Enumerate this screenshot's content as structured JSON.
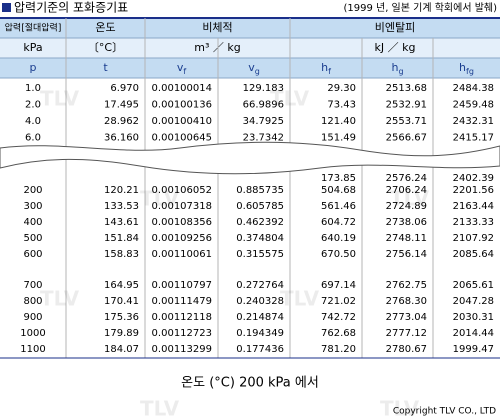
{
  "header": {
    "title": "압력기준의 포화증기표",
    "source": "(1999 년, 일본 기계 학회에서 발췌)"
  },
  "table": {
    "group_header": [
      "압력[절대압력]",
      "온도",
      "비체적",
      "비엔탈피"
    ],
    "unit_header": [
      "kPa",
      "〔°C〕",
      "m³ ／ kg",
      "kJ ／ kg"
    ],
    "symbols": [
      {
        "base": "p"
      },
      {
        "base": "t"
      },
      {
        "base": "v",
        "sub": "f"
      },
      {
        "base": "v",
        "sub": "g"
      },
      {
        "base": "h",
        "sub": "f"
      },
      {
        "base": "h",
        "sub": "g"
      },
      {
        "base": "h",
        "sub": "fg"
      }
    ],
    "rows_top": [
      [
        "1.0",
        "6.970",
        "0.00100014",
        "129.183",
        "29.30",
        "2513.68",
        "2484.38"
      ],
      [
        "2.0",
        "17.495",
        "0.00100136",
        "66.9896",
        "73.43",
        "2532.91",
        "2459.48"
      ],
      [
        "4.0",
        "28.962",
        "0.00100410",
        "34.7925",
        "121.40",
        "2553.71",
        "2432.31"
      ],
      [
        "6.0",
        "36.160",
        "0.00100645",
        "23.7342",
        "151.49",
        "2566.67",
        "2415.17"
      ]
    ],
    "partial_row": [
      "173.85",
      "2576.24",
      "2402.39"
    ],
    "rows_mid": [
      [
        "200",
        "120.21",
        "0.00106052",
        "0.885735",
        "504.68",
        "2706.24",
        "2201.56"
      ],
      [
        "300",
        "133.53",
        "0.00107318",
        "0.605785",
        "561.46",
        "2724.89",
        "2163.44"
      ],
      [
        "400",
        "143.61",
        "0.00108356",
        "0.462392",
        "604.72",
        "2738.06",
        "2133.33"
      ],
      [
        "500",
        "151.84",
        "0.00109256",
        "0.374804",
        "640.19",
        "2748.11",
        "2107.92"
      ],
      [
        "600",
        "158.83",
        "0.00110061",
        "0.315575",
        "670.50",
        "2756.14",
        "2085.64"
      ]
    ],
    "rows_bottom": [
      [
        "700",
        "164.95",
        "0.00110797",
        "0.272764",
        "697.14",
        "2762.75",
        "2065.61"
      ],
      [
        "800",
        "170.41",
        "0.00111479",
        "0.240328",
        "721.02",
        "2768.30",
        "2047.28"
      ],
      [
        "900",
        "175.36",
        "0.00112118",
        "0.214874",
        "742.72",
        "2773.04",
        "2030.31"
      ],
      [
        "1000",
        "179.89",
        "0.00112723",
        "0.194349",
        "762.68",
        "2777.12",
        "2014.44"
      ],
      [
        "1100",
        "184.07",
        "0.00113299",
        "0.177436",
        "781.20",
        "2780.67",
        "1999.47"
      ]
    ]
  },
  "caption": "온도 (°C)  200 kPa 에서",
  "watermark": "TLV",
  "footer": "Copyright TLV CO., LTD"
}
